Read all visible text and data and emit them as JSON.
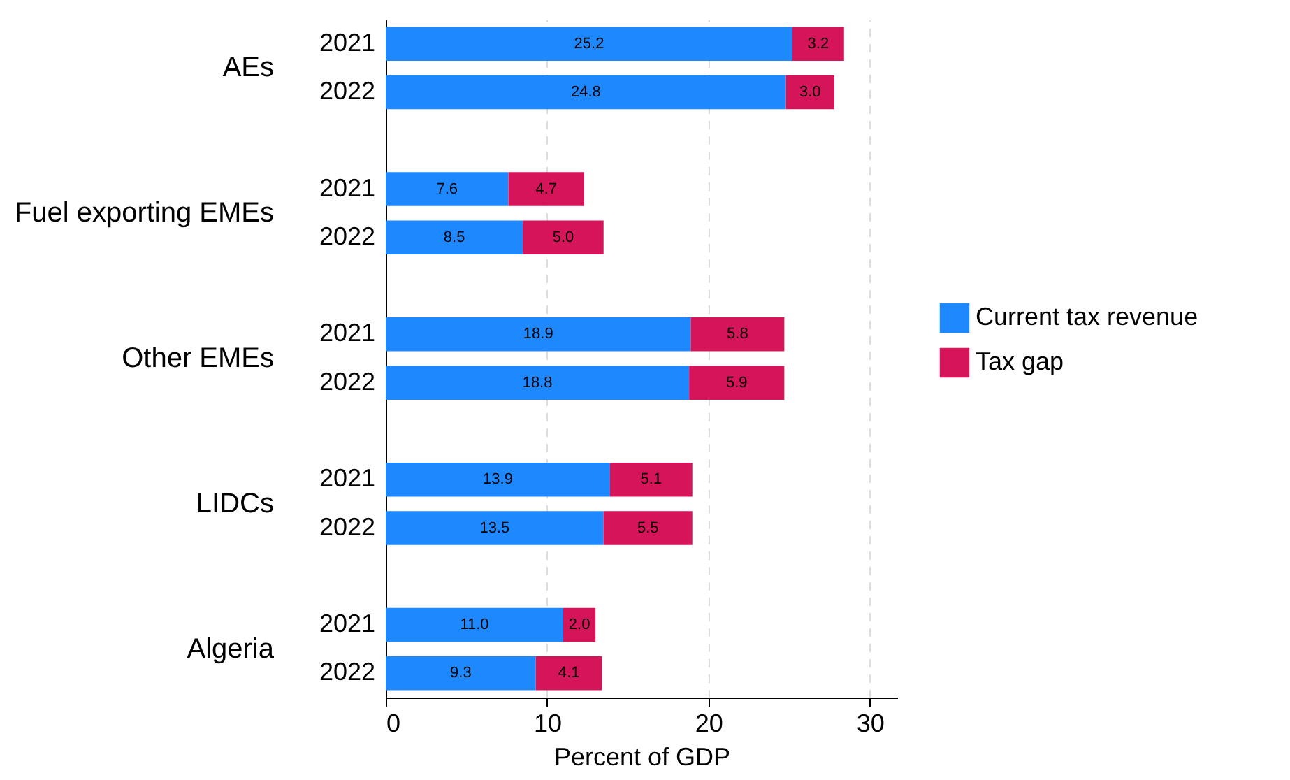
{
  "chart_data": {
    "type": "bar",
    "orientation": "horizontal",
    "stacked": true,
    "categories": [
      "2021",
      "2022",
      null,
      "2021",
      "2022",
      null,
      "2021",
      "2022",
      null,
      "2021",
      "2022",
      null,
      "2021",
      "2022"
    ],
    "series": [
      {
        "name": "Current tax revenue",
        "color": "#1e88ff",
        "values": [
          25.2,
          24.8,
          null,
          7.6,
          8.5,
          null,
          18.9,
          18.8,
          null,
          13.9,
          13.5,
          null,
          11.0,
          9.3
        ],
        "value_labels": [
          "25.2",
          "24.8",
          null,
          "7.6",
          "8.5",
          null,
          "18.9",
          "18.8",
          null,
          "13.9",
          "13.5",
          null,
          "11.0",
          "9.3"
        ]
      },
      {
        "name": "Tax gap",
        "color": "#d6145a",
        "values": [
          3.2,
          3.0,
          null,
          4.7,
          5.0,
          null,
          5.8,
          5.9,
          null,
          5.1,
          5.5,
          null,
          2.0,
          4.1
        ],
        "value_labels": [
          "3.2",
          "3.0",
          null,
          "4.7",
          "5.0",
          null,
          "5.8",
          "5.9",
          null,
          "5.1",
          "5.5",
          null,
          "2.0",
          "4.1"
        ]
      }
    ],
    "annotations": [
      "AEs",
      "Fuel exporting EMEs",
      "Other EMEs",
      "LIDCs",
      "Algeria"
    ],
    "xlabel": "Percent of GDP",
    "xlim": [
      0,
      31.7
    ],
    "xticks": [
      0,
      10,
      20,
      30
    ],
    "grid": "x",
    "legend": "right"
  }
}
